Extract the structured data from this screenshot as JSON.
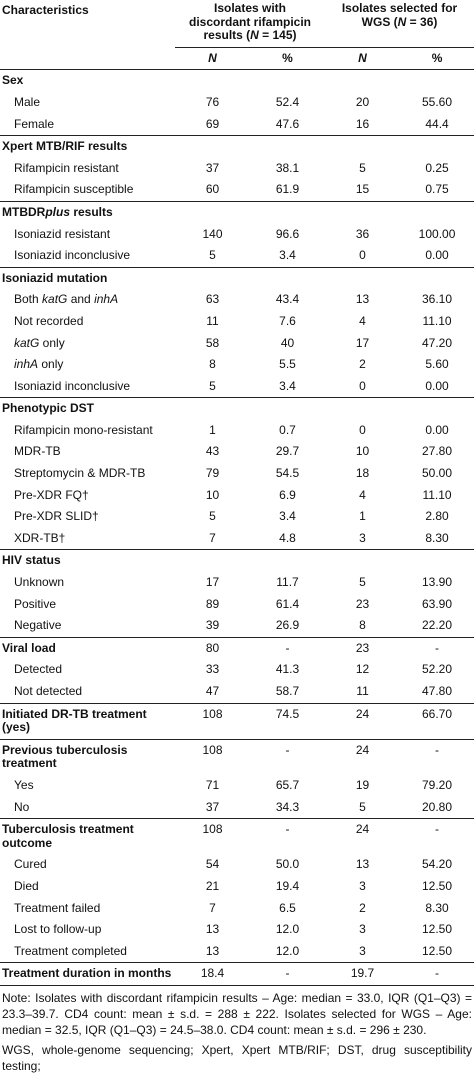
{
  "table": {
    "header": {
      "characteristics": "Characteristics",
      "groups": [
        {
          "title": [
            "Isolates with discordant rifampicin results (",
            {
              "text": "N",
              "italic": true
            },
            " = 145)"
          ]
        },
        {
          "title": [
            "Isolates selected for WGS (",
            {
              "text": "N",
              "italic": true
            },
            " = 36)"
          ]
        }
      ],
      "columns": [
        {
          "text": "N",
          "italic": true
        },
        "%",
        {
          "text": "N",
          "italic": true
        },
        "%"
      ]
    },
    "rows": [
      {
        "label": "Sex",
        "section": true
      },
      {
        "label": "Male",
        "values": [
          "76",
          "52.4",
          "20",
          "55.60"
        ]
      },
      {
        "label": "Female",
        "values": [
          "69",
          "47.6",
          "16",
          "44.4"
        ]
      },
      {
        "label": "Xpert MTB/RIF results",
        "section": true
      },
      {
        "label": "Rifampicin resistant",
        "values": [
          "37",
          "38.1",
          "5",
          "0.25"
        ]
      },
      {
        "label": "Rifampicin susceptible",
        "values": [
          "60",
          "61.9",
          "15",
          "0.75"
        ]
      },
      {
        "label": [
          "MTBDR",
          {
            "text": "plus",
            "italic": true
          },
          " results"
        ],
        "section": true
      },
      {
        "label": "Isoniazid resistant",
        "values": [
          "140",
          "96.6",
          "36",
          "100.00"
        ]
      },
      {
        "label": "Isoniazid inconclusive",
        "values": [
          "5",
          "3.4",
          "0",
          "0.00"
        ]
      },
      {
        "label": "Isoniazid mutation",
        "section": true
      },
      {
        "label": [
          "Both ",
          {
            "text": "katG",
            "italic": true
          },
          " and ",
          {
            "text": "inhA",
            "italic": true
          }
        ],
        "values": [
          "63",
          "43.4",
          "13",
          "36.10"
        ]
      },
      {
        "label": "Not recorded",
        "values": [
          "11",
          "7.6",
          "4",
          "11.10"
        ]
      },
      {
        "label": [
          {
            "text": "katG",
            "italic": true
          },
          " only"
        ],
        "values": [
          "58",
          "40",
          "17",
          "47.20"
        ]
      },
      {
        "label": [
          {
            "text": "inhA",
            "italic": true
          },
          " only"
        ],
        "values": [
          "8",
          "5.5",
          "2",
          "5.60"
        ]
      },
      {
        "label": "Isoniazid inconclusive",
        "values": [
          "5",
          "3.4",
          "0",
          "0.00"
        ]
      },
      {
        "label": "Phenotypic DST",
        "section": true
      },
      {
        "label": "Rifampicin mono-resistant",
        "values": [
          "1",
          "0.7",
          "0",
          "0.00"
        ]
      },
      {
        "label": "MDR-TB",
        "values": [
          "43",
          "29.7",
          "10",
          "27.80"
        ]
      },
      {
        "label": "Streptomycin & MDR-TB",
        "values": [
          "79",
          "54.5",
          "18",
          "50.00"
        ]
      },
      {
        "label": "Pre-XDR FQ†",
        "values": [
          "10",
          "6.9",
          "4",
          "11.10"
        ]
      },
      {
        "label": "Pre-XDR SLID†",
        "values": [
          "5",
          "3.4",
          "1",
          "2.80"
        ]
      },
      {
        "label": "XDR-TB†",
        "values": [
          "7",
          "4.8",
          "3",
          "8.30"
        ]
      },
      {
        "label": "HIV status",
        "section": true
      },
      {
        "label": "Unknown",
        "values": [
          "17",
          "11.7",
          "5",
          "13.90"
        ]
      },
      {
        "label": "Positive",
        "values": [
          "89",
          "61.4",
          "23",
          "63.90"
        ]
      },
      {
        "label": "Negative",
        "values": [
          "39",
          "26.9",
          "8",
          "22.20"
        ]
      },
      {
        "label": "Viral load",
        "section": true,
        "values": [
          "80",
          "-",
          "23",
          "-"
        ]
      },
      {
        "label": "Detected",
        "values": [
          "33",
          "41.3",
          "12",
          "52.20"
        ]
      },
      {
        "label": "Not detected",
        "values": [
          "47",
          "58.7",
          "11",
          "47.80"
        ]
      },
      {
        "label": "Initiated DR-TB treatment (yes)",
        "section": true,
        "values": [
          "108",
          "74.5",
          "24",
          "66.70"
        ]
      },
      {
        "label": "Previous tuberculosis treatment",
        "section": true,
        "values": [
          "108",
          "-",
          "24",
          "-"
        ]
      },
      {
        "label": "Yes",
        "values": [
          "71",
          "65.7",
          "19",
          "79.20"
        ]
      },
      {
        "label": "No",
        "values": [
          "37",
          "34.3",
          "5",
          "20.80"
        ]
      },
      {
        "label": "Tuberculosis treatment outcome",
        "section": true,
        "values": [
          "108",
          "-",
          "24",
          "-"
        ]
      },
      {
        "label": "Cured",
        "values": [
          "54",
          "50.0",
          "13",
          "54.20"
        ]
      },
      {
        "label": "Died",
        "values": [
          "21",
          "19.4",
          "3",
          "12.50"
        ]
      },
      {
        "label": "Treatment failed",
        "values": [
          "7",
          "6.5",
          "2",
          "8.30"
        ]
      },
      {
        "label": "Lost to follow-up",
        "values": [
          "13",
          "12.0",
          "3",
          "12.50"
        ]
      },
      {
        "label": "Treatment completed",
        "values": [
          "13",
          "12.0",
          "3",
          "12.50"
        ]
      },
      {
        "label": "Treatment duration in months",
        "section": true,
        "values": [
          "18.4",
          "-",
          "19.7",
          "-"
        ]
      }
    ]
  },
  "notes": [
    "Note: Isolates with discordant rifampicin results – Age: median = 33.0, IQR (Q1–Q3) = 23.3–39.7. CD4 count: mean ± s.d. = 288 ± 222. Isolates selected for WGS – Age: median = 32.5, IQR (Q1–Q3) = 24.5–38.0. CD4 count: mean ± s.d. = 296 ± 230.",
    "WGS, whole-genome sequencing; Xpert, Xpert MTB/RIF; DST, drug susceptibility testing;"
  ]
}
